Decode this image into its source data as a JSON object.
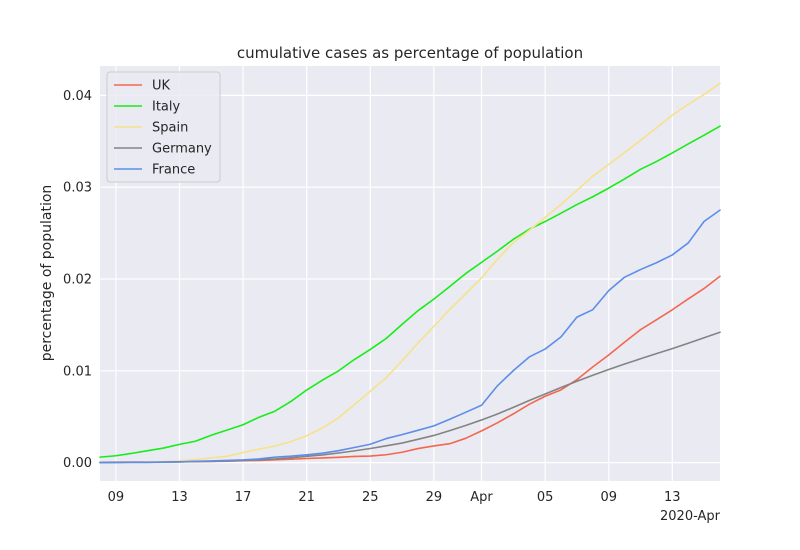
{
  "chart_data": {
    "type": "line",
    "title": "cumulative cases as percentage of population",
    "xlabel": "",
    "ylabel": "percentage of population",
    "x_offset_label": "2020-Apr",
    "x": [
      "2020-03-08",
      "2020-03-09",
      "2020-03-10",
      "2020-03-11",
      "2020-03-12",
      "2020-03-13",
      "2020-03-14",
      "2020-03-15",
      "2020-03-16",
      "2020-03-17",
      "2020-03-18",
      "2020-03-19",
      "2020-03-20",
      "2020-03-21",
      "2020-03-22",
      "2020-03-23",
      "2020-03-24",
      "2020-03-25",
      "2020-03-26",
      "2020-03-27",
      "2020-03-28",
      "2020-03-29",
      "2020-03-30",
      "2020-03-31",
      "2020-04-01",
      "2020-04-02",
      "2020-04-03",
      "2020-04-04",
      "2020-04-05",
      "2020-04-06",
      "2020-04-07",
      "2020-04-08",
      "2020-04-09",
      "2020-04-10",
      "2020-04-11",
      "2020-04-12",
      "2020-04-13",
      "2020-04-14",
      "2020-04-15",
      "2020-04-16"
    ],
    "xlim": [
      "2020-03-08",
      "2020-04-16"
    ],
    "ylim": [
      -0.002,
      0.0432
    ],
    "x_ticks": [
      {
        "date": "2020-03-09",
        "label": "09"
      },
      {
        "date": "2020-03-13",
        "label": "13"
      },
      {
        "date": "2020-03-17",
        "label": "17"
      },
      {
        "date": "2020-03-21",
        "label": "21"
      },
      {
        "date": "2020-03-25",
        "label": "25"
      },
      {
        "date": "2020-03-29",
        "label": "29"
      },
      {
        "date": "2020-04-01",
        "label": "Apr"
      },
      {
        "date": "2020-04-05",
        "label": "05"
      },
      {
        "date": "2020-04-09",
        "label": "09"
      },
      {
        "date": "2020-04-13",
        "label": "13"
      }
    ],
    "y_ticks": [
      {
        "value": 0.0,
        "label": "0.00"
      },
      {
        "value": 0.01,
        "label": "0.01"
      },
      {
        "value": 0.02,
        "label": "0.02"
      },
      {
        "value": 0.03,
        "label": "0.03"
      },
      {
        "value": 0.04,
        "label": "0.04"
      }
    ],
    "grid": true,
    "legend_position": "top-left",
    "series": [
      {
        "name": "UK",
        "color": "#f4674f",
        "values": [
          4e-05,
          5e-05,
          6e-05,
          7e-05,
          8e-05,
          9e-05,
          0.00011,
          0.00013,
          0.00016,
          0.00021,
          0.00024,
          0.00031,
          0.00037,
          0.00045,
          0.00051,
          0.00058,
          0.00068,
          0.00072,
          0.00086,
          0.00113,
          0.00153,
          0.00182,
          0.00206,
          0.00265,
          0.00346,
          0.00434,
          0.00531,
          0.00635,
          0.00723,
          0.00793,
          0.00904,
          0.01043,
          0.01172,
          0.01312,
          0.01448,
          0.01556,
          0.01665,
          0.01783,
          0.01897,
          0.0203
        ]
      },
      {
        "name": "Italy",
        "color": "#17ed17",
        "values": [
          0.0006,
          0.00075,
          0.00101,
          0.0013,
          0.00159,
          0.00199,
          0.00233,
          0.00298,
          0.00356,
          0.00413,
          0.00494,
          0.0056,
          0.00665,
          0.00791,
          0.00899,
          0.00999,
          0.01123,
          0.01233,
          0.01352,
          0.01506,
          0.01655,
          0.01781,
          0.01919,
          0.02059,
          0.02181,
          0.02304,
          0.02432,
          0.02542,
          0.02626,
          0.02717,
          0.02811,
          0.02896,
          0.0299,
          0.0309,
          0.03195,
          0.03279,
          0.03373,
          0.03471,
          0.03566,
          0.03665
        ]
      },
      {
        "name": "Spain",
        "color": "#f7e18a",
        "values": [
          1e-05,
          2e-05,
          4e-05,
          7e-05,
          0.00012,
          0.0002,
          0.00033,
          0.00051,
          0.0007,
          0.0011,
          0.00147,
          0.0018,
          0.00229,
          0.00293,
          0.00378,
          0.00487,
          0.00632,
          0.00777,
          0.00925,
          0.01109,
          0.01302,
          0.01484,
          0.01668,
          0.01837,
          0.02012,
          0.02215,
          0.02396,
          0.0253,
          0.02671,
          0.02812,
          0.02965,
          0.0312,
          0.03249,
          0.03378,
          0.0351,
          0.03646,
          0.03785,
          0.03902,
          0.0401,
          0.0413
        ]
      },
      {
        "name": "Germany",
        "color": "#848484",
        "values": [
          1e-05,
          2e-05,
          3e-05,
          4e-05,
          5e-05,
          8e-05,
          0.00011,
          0.00014,
          0.00018,
          0.00024,
          0.00031,
          0.0004,
          0.00053,
          0.00069,
          0.00084,
          0.00105,
          0.00128,
          0.00154,
          0.00183,
          0.00213,
          0.00254,
          0.00296,
          0.00349,
          0.00405,
          0.00465,
          0.0053,
          0.00602,
          0.00677,
          0.00748,
          0.00818,
          0.00887,
          0.00952,
          0.01015,
          0.01074,
          0.01131,
          0.01187,
          0.01242,
          0.013,
          0.0136,
          0.0142
        ]
      },
      {
        "name": "France",
        "color": "#5d8ee8",
        "values": [
          1e-05,
          2e-05,
          3e-05,
          4e-05,
          6e-05,
          9e-05,
          0.00014,
          0.00018,
          0.00024,
          0.0003,
          0.0004,
          0.0006,
          0.0007,
          0.00085,
          0.00103,
          0.0013,
          0.00165,
          0.002,
          0.00262,
          0.00305,
          0.00352,
          0.004,
          0.00472,
          0.00548,
          0.00625,
          0.00837,
          0.01002,
          0.01151,
          0.01237,
          0.0137,
          0.01585,
          0.01666,
          0.01873,
          0.0202,
          0.02103,
          0.02177,
          0.02262,
          0.02393,
          0.02628,
          0.0275
        ]
      }
    ]
  }
}
